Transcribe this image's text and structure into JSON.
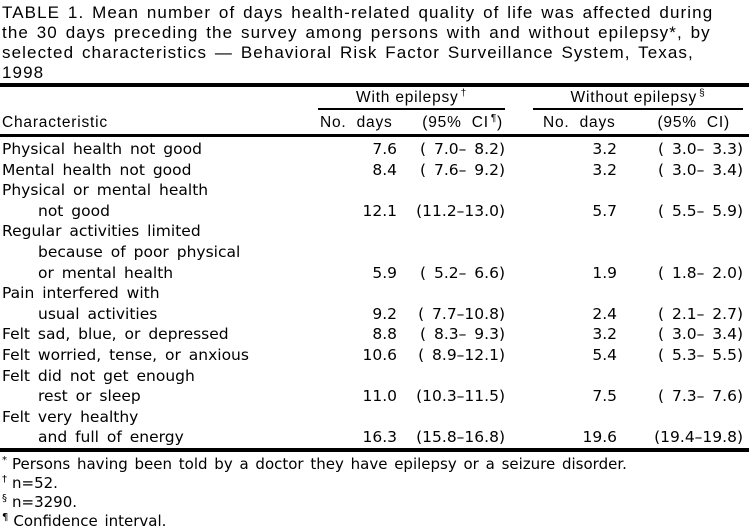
{
  "title": {
    "lines": [
      "TABLE 1. Mean number of days health-related quality of life was affected during",
      "the 30 days preceding the survey among persons with and without epilepsy*, by",
      "selected characteristics — Behavioral Risk Factor Surveillance System, Texas,",
      "1998"
    ]
  },
  "table": {
    "characteristic_header": "Characteristic",
    "groups": {
      "with": {
        "label": "With epilepsy",
        "marker": "†",
        "days_header": "No. days",
        "ci_header_prefix": "(95% CI",
        "ci_header_marker": "¶",
        "ci_header_suffix": ")"
      },
      "without": {
        "label": "Without epilepsy",
        "marker": "§",
        "days_header": "No. days",
        "ci_header": "(95% CI)"
      }
    },
    "rows": [
      {
        "label": "Physical health not good",
        "days_with": "7.6",
        "ci_with": "( 7.0– 8.2)",
        "days_without": "3.2",
        "ci_without": "( 3.0– 3.3)"
      },
      {
        "label": "Mental health not good",
        "days_with": "8.4",
        "ci_with": "( 7.6– 9.2)",
        "days_without": "3.2",
        "ci_without": "( 3.0– 3.4)"
      },
      {
        "label": "Physical or mental health"
      },
      {
        "label": "not good",
        "days_with": "12.1",
        "ci_with": "(11.2–13.0)",
        "days_without": "5.7",
        "ci_without": "( 5.5– 5.9)"
      },
      {
        "label": "Regular activities limited"
      },
      {
        "label": "because of poor physical"
      },
      {
        "label": "or mental health",
        "days_with": "5.9",
        "ci_with": "( 5.2– 6.6)",
        "days_without": "1.9",
        "ci_without": "( 1.8– 2.0)"
      },
      {
        "label": "Pain interfered with"
      },
      {
        "label": "usual activities",
        "days_with": "9.2",
        "ci_with": "( 7.7–10.8)",
        "days_without": "2.4",
        "ci_without": "( 2.1– 2.7)"
      },
      {
        "label": "Felt sad, blue, or depressed",
        "days_with": "8.8",
        "ci_with": "( 8.3– 9.3)",
        "days_without": "3.2",
        "ci_without": "( 3.0– 3.4)"
      },
      {
        "label": "Felt worried, tense, or anxious",
        "days_with": "10.6",
        "ci_with": "( 8.9–12.1)",
        "days_without": "5.4",
        "ci_without": "( 5.3– 5.5)"
      },
      {
        "label": "Felt did not get enough"
      },
      {
        "label": "rest or sleep",
        "days_with": "11.0",
        "ci_with": "(10.3–11.5)",
        "days_without": "7.5",
        "ci_without": "( 7.3– 7.6)"
      },
      {
        "label": "Felt very healthy"
      },
      {
        "label": "and full of energy",
        "days_with": "16.3",
        "ci_with": "(15.8–16.8)",
        "days_without": "19.6",
        "ci_without": "(19.4–19.8)"
      }
    ]
  },
  "footnotes": [
    {
      "marker": "*",
      "text": "Persons having been told by a doctor they have epilepsy or a seizure disorder."
    },
    {
      "marker": "†",
      "text": "n=52."
    },
    {
      "marker": "§",
      "text": "n=3290."
    },
    {
      "marker": "¶",
      "text": "Confidence interval."
    }
  ],
  "colors": {
    "text": "#000000",
    "background": "#ffffff",
    "rule": "#000000"
  }
}
